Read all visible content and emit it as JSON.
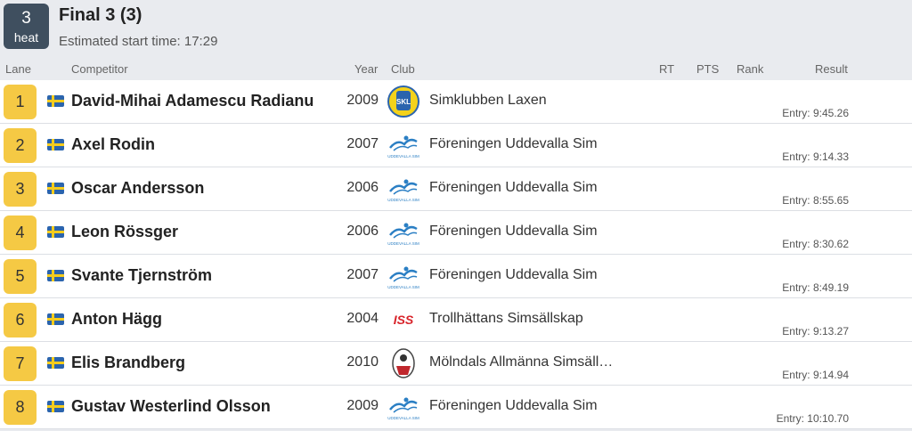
{
  "heat": {
    "number": "3",
    "label": "heat",
    "title": "Final 3 (3)",
    "start": "Estimated start time: 17:29"
  },
  "columns": {
    "lane": "Lane",
    "competitor": "Competitor",
    "year": "Year",
    "club": "Club",
    "rt": "RT",
    "pts": "PTS",
    "rank": "Rank",
    "result": "Result"
  },
  "rows": [
    {
      "lane": "1",
      "name": "David-Mihai Adamescu Radianu",
      "year": "2009",
      "club": "Simklubben Laxen",
      "logo": "laxen-logo",
      "entry": "Entry: 9:45.26"
    },
    {
      "lane": "2",
      "name": "Axel Rodin",
      "year": "2007",
      "club": "Föreningen Uddevalla Sim",
      "logo": "uddevalla-logo",
      "entry": "Entry: 9:14.33"
    },
    {
      "lane": "3",
      "name": "Oscar Andersson",
      "year": "2006",
      "club": "Föreningen Uddevalla Sim",
      "logo": "uddevalla-logo",
      "entry": "Entry: 8:55.65"
    },
    {
      "lane": "4",
      "name": "Leon Rössger",
      "year": "2006",
      "club": "Föreningen Uddevalla Sim",
      "logo": "uddevalla-logo",
      "entry": "Entry: 8:30.62"
    },
    {
      "lane": "5",
      "name": "Svante Tjernström",
      "year": "2007",
      "club": "Föreningen Uddevalla Sim",
      "logo": "uddevalla-logo",
      "entry": "Entry: 8:49.19"
    },
    {
      "lane": "6",
      "name": "Anton Hägg",
      "year": "2004",
      "club": "Trollhättans Simsällskap",
      "logo": "iss-logo",
      "entry": "Entry: 9:13.27"
    },
    {
      "lane": "7",
      "name": "Elis Brandberg",
      "year": "2010",
      "club": "Mölndals Allmänna Simsäll…",
      "logo": "molndal-logo",
      "entry": "Entry: 9:14.94"
    },
    {
      "lane": "8",
      "name": "Gustav Westerlind Olsson",
      "year": "2009",
      "club": "Föreningen Uddevalla Sim",
      "logo": "uddevalla-logo",
      "entry": "Entry: 10:10.70"
    }
  ],
  "logo_text": {
    "laxen": "SKL",
    "uddevalla": "UDDEVALLA SIM",
    "iss": "ISS"
  },
  "colors": {
    "lane_badge": "#f5c944",
    "heat_badge": "#3f4f5f",
    "flag_blue": "#2b64ad",
    "flag_yellow": "#f5cc1d"
  }
}
